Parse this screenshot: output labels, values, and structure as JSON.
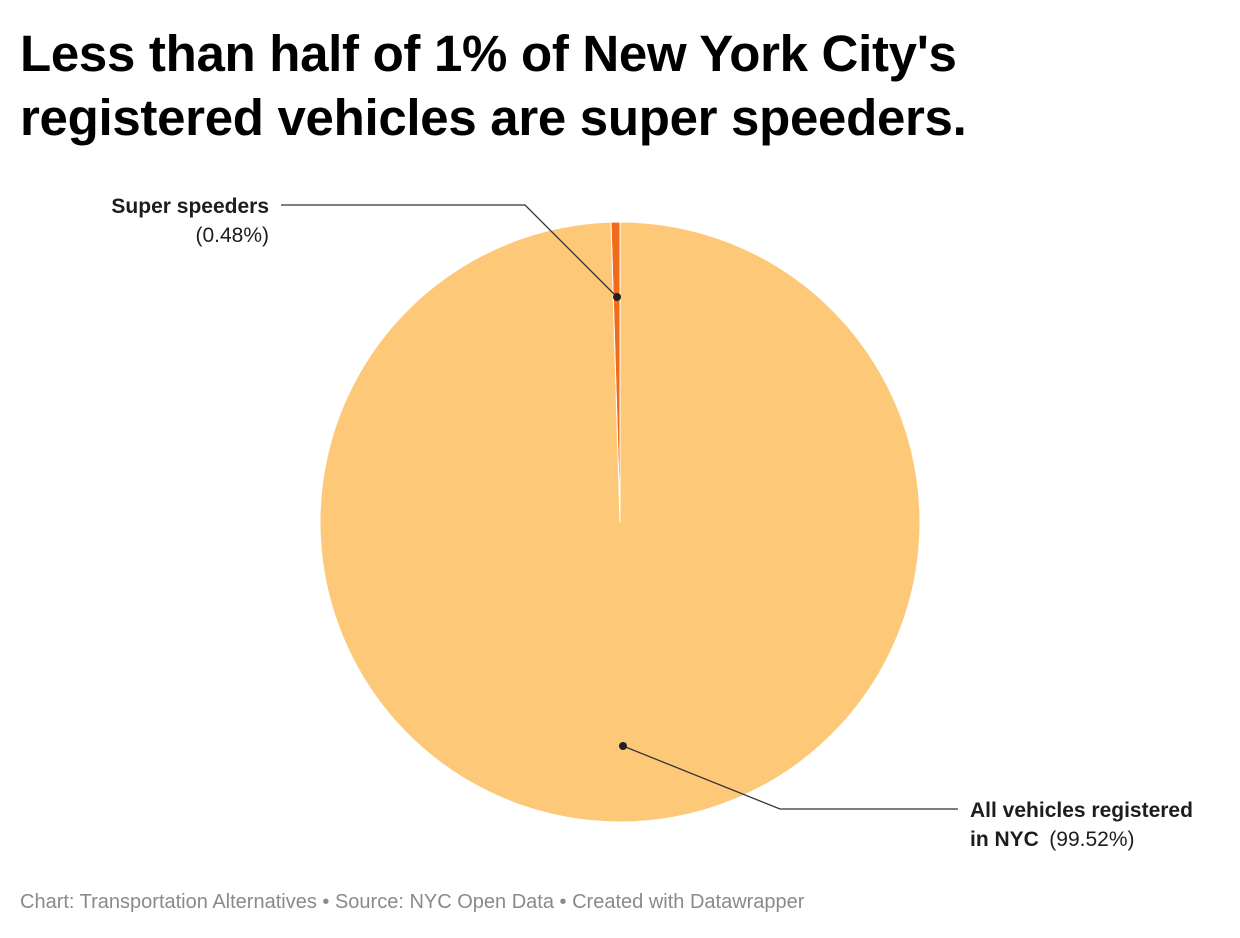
{
  "title": {
    "line1": "Less than half of 1% of New York City's",
    "line2": "registered vehicles are super speeders."
  },
  "chart_data": {
    "type": "pie",
    "slices": [
      {
        "name": "Super speeders",
        "value": 0.48,
        "label": "(0.48%)",
        "color": "#f26b1d"
      },
      {
        "name": "All vehicles registered in NYC",
        "name_line1": "All vehicles registered",
        "name_line2": "in NYC",
        "value": 99.52,
        "label": "(99.52%)",
        "color": "#fdc978"
      }
    ],
    "unit": "%"
  },
  "footer": {
    "chart_credit": "Chart: Transportation Alternatives",
    "sep1": "•",
    "source": "Source: NYC Open Data",
    "sep2": "•",
    "created": "Created with Datawrapper"
  }
}
